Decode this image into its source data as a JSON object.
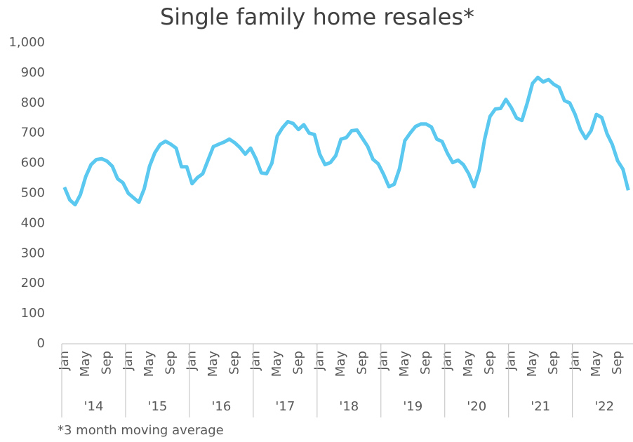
{
  "chart_data": {
    "type": "line",
    "title": "Single family home resales*",
    "footnote": "*3 month moving average",
    "categories": [
      "Jan",
      null,
      null,
      null,
      "May",
      null,
      null,
      null,
      "Sep",
      null,
      null,
      null,
      "Jan",
      null,
      null,
      null,
      "May",
      null,
      null,
      null,
      "Sep",
      null,
      null,
      null,
      "Jan",
      null,
      null,
      null,
      "May",
      null,
      null,
      null,
      "Sep",
      null,
      null,
      null,
      "Jan",
      null,
      null,
      null,
      "May",
      null,
      null,
      null,
      "Sep",
      null,
      null,
      null,
      "Jan",
      null,
      null,
      null,
      "May",
      null,
      null,
      null,
      "Sep",
      null,
      null,
      null,
      "Jan",
      null,
      null,
      null,
      "May",
      null,
      null,
      null,
      "Sep",
      null,
      null,
      null,
      "Jan",
      null,
      null,
      null,
      "May",
      null,
      null,
      null,
      "Sep",
      null,
      null,
      null,
      "Jan",
      null,
      null,
      null,
      "May",
      null,
      null,
      null,
      "Sep",
      null,
      null,
      null,
      "Jan",
      null,
      null,
      null,
      "May",
      null,
      null,
      null,
      "Sep",
      null,
      null,
      null
    ],
    "year_labels": [
      "'14",
      "'15",
      "'16",
      "'17",
      "'18",
      "'19",
      "'20",
      "'21",
      "'22"
    ],
    "series": [
      {
        "color": "#5bc8f0",
        "values": [
          520,
          478,
          462,
          495,
          555,
          595,
          612,
          615,
          607,
          590,
          548,
          535,
          500,
          485,
          470,
          515,
          590,
          635,
          662,
          673,
          663,
          650,
          588,
          588,
          532,
          552,
          565,
          610,
          655,
          663,
          670,
          680,
          668,
          652,
          630,
          650,
          615,
          568,
          565,
          600,
          690,
          718,
          738,
          732,
          712,
          728,
          700,
          695,
          630,
          595,
          602,
          625,
          680,
          685,
          708,
          710,
          683,
          656,
          613,
          598,
          563,
          522,
          530,
          582,
          675,
          700,
          722,
          730,
          730,
          720,
          680,
          672,
          633,
          602,
          610,
          595,
          565,
          522,
          578,
          680,
          755,
          780,
          782,
          812,
          785,
          750,
          742,
          800,
          865,
          885,
          870,
          878,
          862,
          852,
          808,
          800,
          762,
          712,
          682,
          708,
          762,
          752,
          698,
          662,
          608,
          580,
          510,
          null
        ]
      }
    ],
    "ylim": [
      0,
      1000
    ],
    "yticks": [
      0,
      100,
      200,
      300,
      400,
      500,
      600,
      700,
      800,
      900,
      {
        "value": 1000,
        "label": "1,000"
      }
    ]
  }
}
